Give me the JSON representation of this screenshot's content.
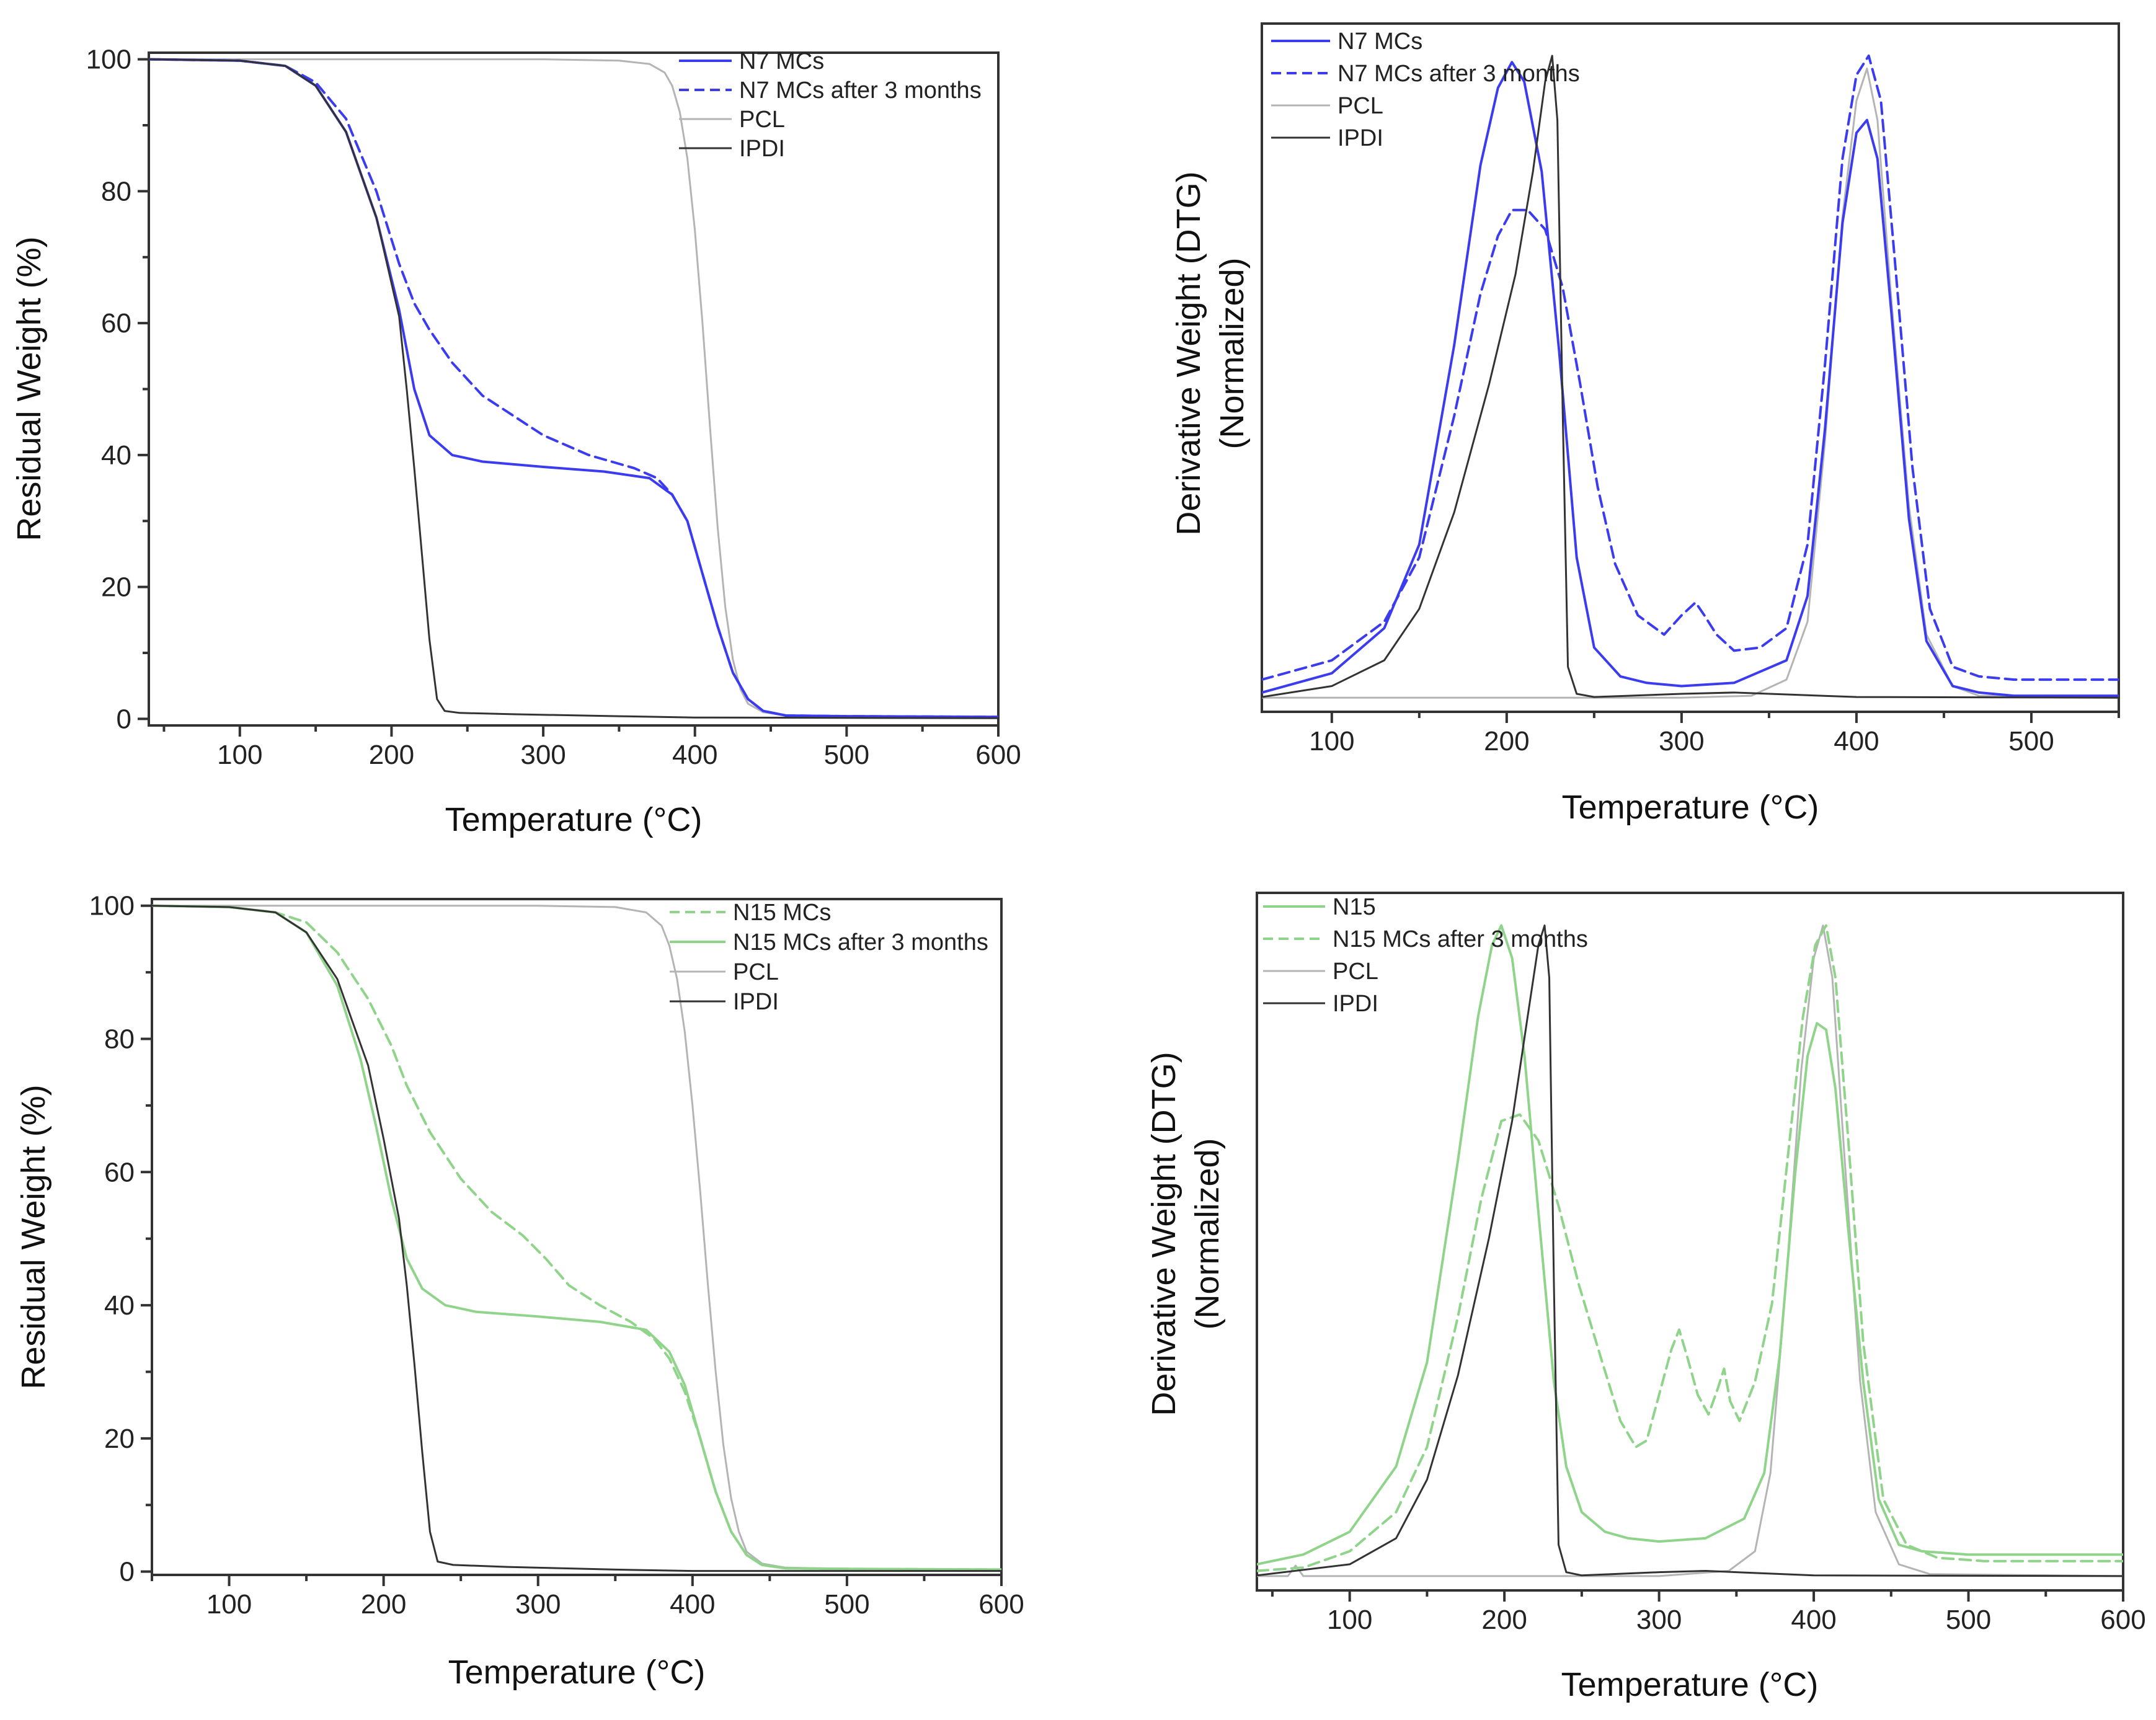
{
  "colors": {
    "blue": "#3b3bf0",
    "green": "#8fd48a",
    "pcl": "#b4b4b4",
    "ipdi": "#333333"
  },
  "chart_data": [
    {
      "type": "line",
      "panel": "top-left",
      "title": "",
      "xlabel": "Temperature (°C)",
      "ylabel": "Residual Weight (%)",
      "xlim": [
        40,
        600
      ],
      "ylim": [
        -1,
        101
      ],
      "xticks": [
        100,
        200,
        300,
        400,
        500,
        600
      ],
      "yticks": [
        0,
        20,
        40,
        60,
        80,
        100
      ],
      "legend_position": "top-right",
      "series": [
        {
          "name": "N7 MCs",
          "color": "#3b3bf0",
          "dash": false,
          "width": 4,
          "x": [
            40,
            100,
            130,
            150,
            170,
            190,
            205,
            215,
            225,
            240,
            260,
            300,
            340,
            370,
            385,
            395,
            405,
            415,
            425,
            435,
            445,
            460,
            500,
            600
          ],
          "y": [
            100,
            99.8,
            99,
            96,
            89,
            76,
            62,
            50,
            43,
            40,
            39,
            38.2,
            37.5,
            36.5,
            34,
            30,
            22,
            14,
            7,
            3,
            1.2,
            0.5,
            0.4,
            0.3
          ]
        },
        {
          "name": "N7 MCs after 3 months",
          "color": "#3b3bf0",
          "dash": true,
          "width": 4,
          "x": [
            40,
            100,
            130,
            150,
            170,
            190,
            205,
            215,
            225,
            240,
            260,
            280,
            300,
            330,
            360,
            375,
            385,
            395,
            405,
            415,
            425,
            435,
            445,
            460,
            500,
            600
          ],
          "y": [
            100,
            99.8,
            99,
            96.5,
            91,
            80,
            69,
            63,
            59,
            54,
            49,
            46,
            43,
            40,
            38,
            36.5,
            34,
            30,
            22,
            14,
            7,
            3,
            1.2,
            0.5,
            0.4,
            0.3
          ]
        },
        {
          "name": "PCL",
          "color": "#b4b4b4",
          "dash": false,
          "width": 3,
          "x": [
            40,
            300,
            350,
            370,
            380,
            385,
            390,
            395,
            400,
            405,
            410,
            415,
            420,
            425,
            430,
            435,
            445,
            460,
            500,
            600
          ],
          "y": [
            100,
            100,
            99.8,
            99.3,
            98,
            96,
            92,
            85,
            74,
            60,
            44,
            29,
            17,
            9,
            4.5,
            2.3,
            1,
            0.5,
            0.4,
            0.3
          ]
        },
        {
          "name": "IPDI",
          "color": "#333333",
          "dash": false,
          "width": 3,
          "x": [
            40,
            100,
            130,
            150,
            170,
            190,
            205,
            210,
            215,
            220,
            225,
            230,
            235,
            245,
            280,
            350,
            400,
            600
          ],
          "y": [
            100,
            99.8,
            99,
            96,
            89,
            76,
            61,
            50,
            38,
            25,
            12,
            3,
            1.2,
            0.9,
            0.7,
            0.4,
            0.2,
            0.1
          ]
        }
      ]
    },
    {
      "type": "line",
      "panel": "top-right",
      "title": "",
      "xlabel": "Temperature (°C)",
      "ylabel": "Derivative Weight (DTG)",
      "ylabel2": "(Normalized)",
      "xlim": [
        60,
        550
      ],
      "ylim": [
        -0.02,
        1.05
      ],
      "xticks": [
        100,
        200,
        300,
        400,
        500
      ],
      "yticks": [],
      "legend_position": "top-left",
      "series": [
        {
          "name": "N7 MCs",
          "color": "#3b3bf0",
          "dash": false,
          "width": 4,
          "x": [
            60,
            100,
            130,
            150,
            170,
            185,
            195,
            203,
            210,
            220,
            230,
            240,
            250,
            265,
            280,
            300,
            330,
            360,
            372,
            382,
            392,
            400,
            406,
            412,
            420,
            430,
            440,
            455,
            470,
            490,
            550
          ],
          "y": [
            0.01,
            0.04,
            0.11,
            0.24,
            0.55,
            0.83,
            0.95,
            0.99,
            0.96,
            0.82,
            0.54,
            0.22,
            0.08,
            0.035,
            0.025,
            0.02,
            0.025,
            0.06,
            0.16,
            0.42,
            0.74,
            0.88,
            0.9,
            0.84,
            0.6,
            0.28,
            0.09,
            0.02,
            0.01,
            0.005,
            0.005
          ]
        },
        {
          "name": "N7 MCs after 3 months",
          "color": "#3b3bf0",
          "dash": true,
          "width": 4,
          "x": [
            60,
            100,
            130,
            150,
            170,
            185,
            195,
            203,
            212,
            222,
            232,
            242,
            252,
            262,
            275,
            290,
            300,
            308,
            313,
            320,
            330,
            345,
            360,
            372,
            382,
            392,
            400,
            407,
            414,
            422,
            432,
            442,
            455,
            470,
            490,
            550
          ],
          "y": [
            0.03,
            0.06,
            0.12,
            0.22,
            0.44,
            0.63,
            0.72,
            0.76,
            0.76,
            0.73,
            0.64,
            0.49,
            0.33,
            0.21,
            0.13,
            0.1,
            0.13,
            0.15,
            0.13,
            0.1,
            0.075,
            0.08,
            0.11,
            0.24,
            0.52,
            0.84,
            0.97,
            1.0,
            0.93,
            0.68,
            0.36,
            0.14,
            0.05,
            0.035,
            0.03,
            0.03
          ]
        },
        {
          "name": "PCL",
          "color": "#b4b4b4",
          "dash": false,
          "width": 3,
          "x": [
            60,
            300,
            340,
            360,
            372,
            382,
            392,
            400,
            406,
            412,
            420,
            430,
            440,
            455,
            470,
            550
          ],
          "y": [
            0.002,
            0.002,
            0.005,
            0.03,
            0.12,
            0.4,
            0.75,
            0.93,
            0.98,
            0.9,
            0.62,
            0.3,
            0.1,
            0.02,
            0.005,
            0.002
          ]
        },
        {
          "name": "IPDI",
          "color": "#333333",
          "dash": false,
          "width": 3,
          "x": [
            60,
            100,
            130,
            150,
            170,
            190,
            205,
            215,
            222,
            226,
            229,
            232,
            235,
            240,
            250,
            300,
            330,
            400,
            550
          ],
          "y": [
            0.003,
            0.02,
            0.06,
            0.14,
            0.29,
            0.49,
            0.66,
            0.82,
            0.96,
            1.0,
            0.9,
            0.45,
            0.05,
            0.008,
            0.003,
            0.008,
            0.01,
            0.003,
            0.002
          ]
        }
      ]
    },
    {
      "type": "line",
      "panel": "bottom-left",
      "title": "",
      "xlabel": "Temperature (°C)",
      "ylabel": "Residual Weight (%)",
      "xlim": [
        50,
        600
      ],
      "ylim": [
        -0.5,
        101
      ],
      "xticks": [
        100,
        200,
        300,
        400,
        500,
        600
      ],
      "yticks": [
        0,
        20,
        40,
        60,
        80,
        100
      ],
      "legend_position": "top-right",
      "series": [
        {
          "name": "N15 MCs",
          "color": "#8fd48a",
          "dash": true,
          "width": 4,
          "x": [
            50,
            100,
            130,
            150,
            170,
            190,
            205,
            215,
            230,
            250,
            270,
            290,
            305,
            320,
            340,
            360,
            375,
            385,
            395,
            405,
            415,
            425,
            435,
            445,
            460,
            500,
            600
          ],
          "y": [
            100,
            99.8,
            99,
            97.5,
            93,
            86,
            79,
            73,
            66,
            59,
            54,
            50.5,
            47,
            43,
            40,
            37.5,
            35,
            32,
            27,
            20,
            12,
            6,
            2.5,
            1,
            0.5,
            0.4,
            0.3
          ]
        },
        {
          "name": "N15 MCs after 3 months",
          "color": "#8fd48a",
          "dash": false,
          "width": 4,
          "x": [
            50,
            100,
            130,
            150,
            170,
            185,
            195,
            205,
            215,
            225,
            240,
            260,
            300,
            340,
            370,
            385,
            395,
            405,
            415,
            425,
            435,
            445,
            460,
            500,
            600
          ],
          "y": [
            100,
            99.8,
            99,
            96,
            88,
            77,
            67,
            56,
            47,
            42.5,
            40,
            39,
            38.3,
            37.5,
            36.3,
            33,
            28,
            20,
            12,
            6,
            2.5,
            1,
            0.5,
            0.4,
            0.3
          ]
        },
        {
          "name": "PCL",
          "color": "#b4b4b4",
          "dash": false,
          "width": 3,
          "x": [
            50,
            300,
            350,
            370,
            380,
            385,
            390,
            395,
            400,
            405,
            410,
            415,
            420,
            425,
            430,
            435,
            445,
            460,
            500,
            600
          ],
          "y": [
            100,
            100,
            99.8,
            99,
            97,
            94,
            89,
            81,
            70,
            57,
            43,
            30,
            19,
            11,
            6,
            3,
            1.2,
            0.6,
            0.4,
            0.3
          ]
        },
        {
          "name": "IPDI",
          "color": "#333333",
          "dash": false,
          "width": 3,
          "x": [
            50,
            100,
            130,
            150,
            170,
            190,
            200,
            210,
            215,
            220,
            225,
            230,
            235,
            245,
            280,
            350,
            400,
            600
          ],
          "y": [
            100,
            99.8,
            99,
            96,
            89,
            76,
            65,
            53,
            43,
            31,
            18,
            6,
            1.5,
            1,
            0.7,
            0.3,
            0.1,
            0.1
          ]
        }
      ]
    },
    {
      "type": "line",
      "panel": "bottom-right",
      "title": "",
      "xlabel": "Temperature (°C)",
      "ylabel": "Derivative Weight (DTG)",
      "ylabel2": "(Normalized)",
      "xlim": [
        40,
        600
      ],
      "ylim": [
        -0.02,
        1.05
      ],
      "xticks": [
        100,
        200,
        300,
        400,
        500,
        600
      ],
      "yticks": [],
      "legend_position": "top-left",
      "series": [
        {
          "name": "N15",
          "color": "#8fd48a",
          "dash": false,
          "width": 4,
          "x": [
            40,
            70,
            100,
            130,
            150,
            170,
            183,
            192,
            198,
            205,
            213,
            222,
            232,
            240,
            250,
            265,
            280,
            300,
            330,
            355,
            368,
            378,
            388,
            396,
            402,
            408,
            414,
            422,
            432,
            442,
            455,
            470,
            500,
            600
          ],
          "y": [
            0.02,
            0.035,
            0.07,
            0.17,
            0.33,
            0.64,
            0.86,
            0.97,
            1.0,
            0.95,
            0.8,
            0.56,
            0.3,
            0.17,
            0.1,
            0.07,
            0.06,
            0.055,
            0.06,
            0.09,
            0.16,
            0.34,
            0.62,
            0.8,
            0.85,
            0.84,
            0.75,
            0.54,
            0.3,
            0.12,
            0.05,
            0.04,
            0.035,
            0.035
          ]
        },
        {
          "name": "N15 MCs after 3 months",
          "color": "#8fd48a",
          "dash": true,
          "width": 4,
          "x": [
            40,
            70,
            100,
            130,
            150,
            170,
            185,
            198,
            210,
            222,
            235,
            248,
            262,
            275,
            285,
            292,
            300,
            308,
            313,
            318,
            325,
            332,
            338,
            342,
            346,
            352,
            362,
            373,
            383,
            393,
            401,
            408,
            414,
            422,
            432,
            445,
            460,
            480,
            510,
            600
          ],
          "y": [
            0.01,
            0.015,
            0.04,
            0.1,
            0.2,
            0.4,
            0.58,
            0.7,
            0.71,
            0.67,
            0.57,
            0.45,
            0.34,
            0.24,
            0.2,
            0.21,
            0.28,
            0.35,
            0.38,
            0.34,
            0.28,
            0.25,
            0.29,
            0.32,
            0.27,
            0.24,
            0.3,
            0.42,
            0.64,
            0.86,
            0.97,
            1.0,
            0.92,
            0.68,
            0.36,
            0.12,
            0.05,
            0.03,
            0.025,
            0.025
          ]
        },
        {
          "name": "PCL",
          "color": "#b4b4b4",
          "dash": false,
          "width": 3,
          "x": [
            40,
            60,
            65,
            70,
            75,
            300,
            345,
            362,
            372,
            382,
            392,
            400,
            406,
            412,
            420,
            430,
            440,
            455,
            475,
            600
          ],
          "y": [
            0.002,
            0.002,
            0.018,
            0.002,
            0.002,
            0.002,
            0.01,
            0.04,
            0.16,
            0.45,
            0.78,
            0.95,
            1.0,
            0.92,
            0.64,
            0.3,
            0.1,
            0.02,
            0.005,
            0.002
          ]
        },
        {
          "name": "IPDI",
          "color": "#333333",
          "dash": false,
          "width": 3,
          "x": [
            40,
            100,
            130,
            150,
            170,
            190,
            205,
            215,
            222,
            226,
            229,
            232,
            235,
            240,
            250,
            300,
            330,
            400,
            600
          ],
          "y": [
            0.003,
            0.02,
            0.06,
            0.15,
            0.31,
            0.52,
            0.7,
            0.86,
            0.97,
            1.0,
            0.92,
            0.45,
            0.05,
            0.008,
            0.003,
            0.008,
            0.01,
            0.003,
            0.002
          ]
        }
      ]
    }
  ]
}
